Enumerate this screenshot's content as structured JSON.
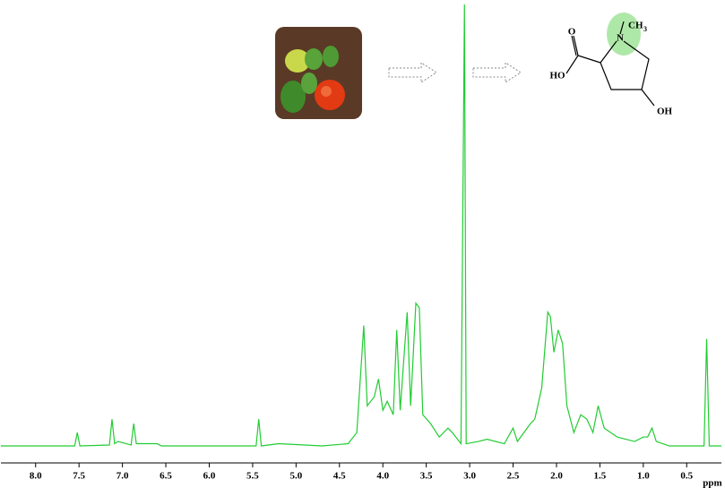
{
  "chart_data": {
    "type": "line",
    "x_label": "ppm",
    "xlim": [
      8.4,
      0.1
    ],
    "xticks": [
      {
        "value": 8,
        "label": "8.0"
      },
      7.5,
      {
        "value": 7,
        "label": "7.0"
      },
      6.5,
      {
        "value": 6,
        "label": "6.0"
      },
      5.5,
      {
        "value": 5,
        "label": "5.0"
      },
      4.5,
      {
        "value": 4,
        "label": "4.0"
      },
      3.5,
      {
        "value": 3,
        "label": "3.0"
      },
      2.5,
      {
        "value": 2,
        "label": "2.0"
      },
      1.5,
      {
        "value": 1,
        "label": "1.0"
      },
      0.5
    ],
    "ylim": [
      0,
      100
    ],
    "series": [
      {
        "color": "#22cc33",
        "x": [
          8.4,
          7.55,
          7.52,
          7.49,
          7.15,
          7.12,
          7.09,
          7.05,
          6.9,
          6.87,
          6.84,
          6.6,
          6.55,
          5.46,
          5.43,
          5.4,
          5.2,
          4.7,
          4.4,
          4.3,
          4.22,
          4.18,
          4.1,
          4.05,
          4.0,
          3.95,
          3.88,
          3.84,
          3.8,
          3.72,
          3.68,
          3.62,
          3.58,
          3.54,
          3.45,
          3.35,
          3.25,
          3.2,
          3.1,
          3.06,
          3.04,
          2.9,
          2.8,
          2.6,
          2.5,
          2.45,
          2.3,
          2.25,
          2.17,
          2.1,
          2.07,
          2.03,
          1.98,
          1.93,
          1.88,
          1.8,
          1.72,
          1.65,
          1.58,
          1.52,
          1.45,
          1.3,
          1.1,
          1.0,
          0.95,
          0.9,
          0.85,
          0.7,
          0.4,
          0.3,
          0.27,
          0.24,
          0.1
        ],
        "values": [
          1,
          1,
          4,
          1,
          1.2,
          7,
          1.5,
          2,
          1.2,
          6,
          1.5,
          1.5,
          1,
          1,
          7,
          1,
          1.5,
          1,
          1.5,
          4,
          28,
          10,
          12,
          16,
          9,
          11,
          8,
          27,
          9,
          31,
          10,
          33,
          32,
          8,
          6,
          3,
          5,
          4,
          1.5,
          100,
          1.5,
          2,
          2.5,
          1.5,
          5,
          2,
          6,
          7,
          14,
          31,
          30,
          22,
          27,
          24,
          10,
          4,
          8,
          7,
          4,
          10,
          5,
          3,
          2,
          3,
          3,
          5,
          2,
          1,
          1,
          1,
          25,
          1,
          1
        ]
      }
    ]
  },
  "structure": {
    "labels": [
      "O",
      "HO",
      "N",
      "CH",
      "3",
      "OH"
    ]
  }
}
